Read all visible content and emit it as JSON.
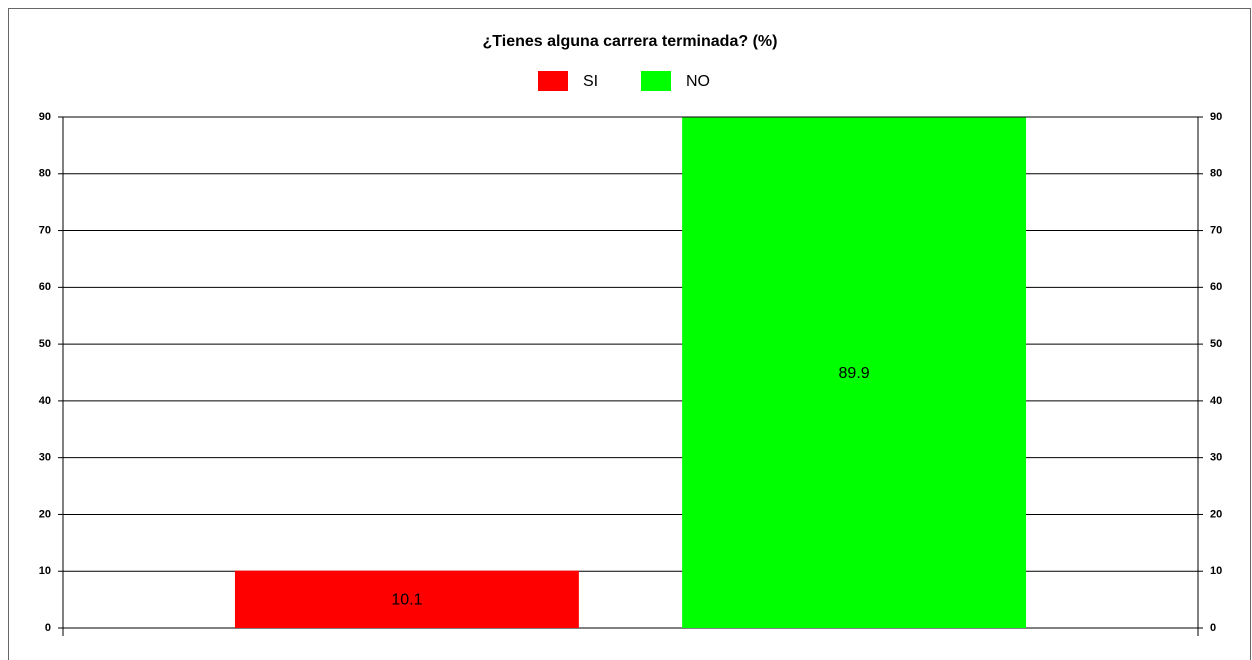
{
  "chart_data": {
    "type": "bar",
    "title": "¿Tienes alguna carrera terminada? (%)",
    "categories": [
      null
    ],
    "series": [
      {
        "name": "SI",
        "color": "#ff0000",
        "values": [
          10.1
        ]
      },
      {
        "name": "NO",
        "color": "#00ff00",
        "values": [
          89.9
        ]
      }
    ],
    "ylim": [
      0,
      90
    ],
    "yticks": [
      0,
      10,
      20,
      30,
      40,
      50,
      60,
      70,
      80,
      90
    ],
    "grid": true,
    "legend": "top"
  }
}
